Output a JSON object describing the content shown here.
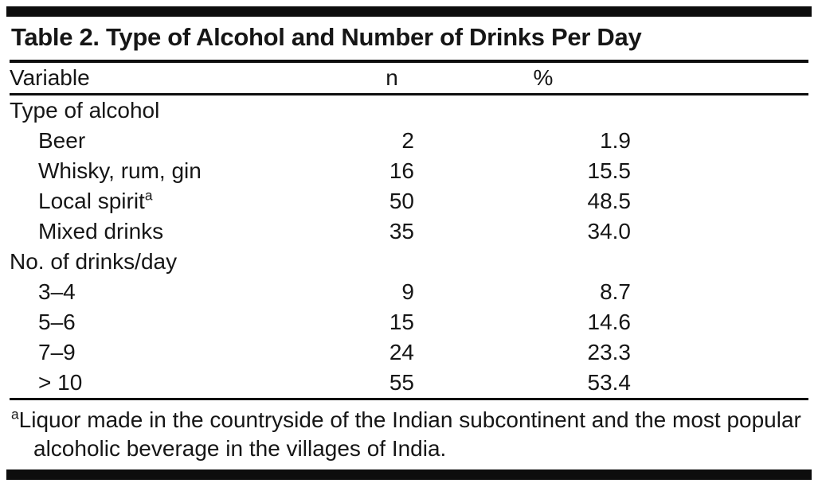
{
  "table": {
    "title": "Table 2. Type of Alcohol and Number of Drinks Per Day",
    "columns": [
      "Variable",
      "n",
      "%"
    ],
    "rows": [
      {
        "label": "Type of alcohol",
        "n": "",
        "pct": ""
      },
      {
        "label": "Beer",
        "n": "2",
        "pct": "1.9"
      },
      {
        "label": "Whisky, rum, gin",
        "n": "16",
        "pct": "15.5"
      },
      {
        "label": "Local spirit",
        "sup": "a",
        "n": "50",
        "pct": "48.5"
      },
      {
        "label": "Mixed drinks",
        "n": "35",
        "pct": "34.0"
      },
      {
        "label": "No. of drinks/day",
        "n": "",
        "pct": ""
      },
      {
        "label": "3–4",
        "n": "9",
        "pct": "8.7"
      },
      {
        "label": "5–6",
        "n": "15",
        "pct": "14.6"
      },
      {
        "label": "7–9",
        "n": "24",
        "pct": "23.3"
      },
      {
        "label": "> 10",
        "n": "55",
        "pct": "53.4"
      }
    ],
    "footnote": {
      "marker": "a",
      "text": "Liquor made in the countryside of the Indian subcontinent and the most popular alcoholic beverage in the villages of India."
    }
  },
  "chart_data": {
    "type": "table",
    "title": "Table 2. Type of Alcohol and Number of Drinks Per Day",
    "columns": [
      "Variable",
      "n",
      "%"
    ],
    "sections": [
      {
        "section": "Type of alcohol",
        "rows": [
          {
            "variable": "Beer",
            "n": 2,
            "pct": 1.9
          },
          {
            "variable": "Whisky, rum, gin",
            "n": 16,
            "pct": 15.5
          },
          {
            "variable": "Local spirit (a)",
            "n": 50,
            "pct": 48.5
          },
          {
            "variable": "Mixed drinks",
            "n": 35,
            "pct": 34.0
          }
        ]
      },
      {
        "section": "No. of drinks/day",
        "rows": [
          {
            "variable": "3–4",
            "n": 9,
            "pct": 8.7
          },
          {
            "variable": "5–6",
            "n": 15,
            "pct": 14.6
          },
          {
            "variable": "7–9",
            "n": 24,
            "pct": 23.3
          },
          {
            "variable": "> 10",
            "n": 55,
            "pct": 53.4
          }
        ]
      }
    ],
    "footnote": "a Liquor made in the countryside of the Indian subcontinent and the most popular alcoholic beverage in the villages of India."
  }
}
